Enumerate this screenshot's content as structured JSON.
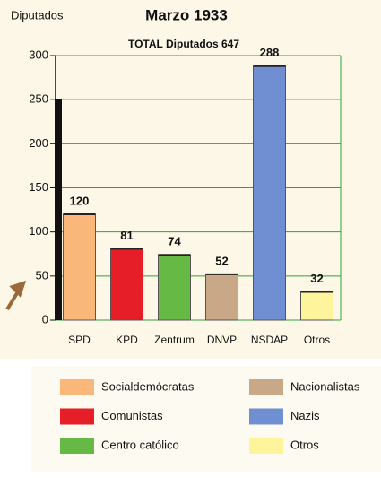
{
  "chart_data": {
    "type": "bar",
    "title": "Marzo 1933",
    "subtitle": "TOTAL Diputados 647",
    "y_label": "Diputados",
    "categories": [
      "SPD",
      "KPD",
      "Zentrum",
      "DNVP",
      "NSDAP",
      "Otros"
    ],
    "values": [
      120,
      81,
      74,
      52,
      288,
      32
    ],
    "colors": [
      "#f9b77a",
      "#e61e27",
      "#65b944",
      "#c8a887",
      "#6f8fd2",
      "#fdf49b"
    ],
    "ylim": [
      0,
      300
    ],
    "yticks": [
      0,
      50,
      100,
      150,
      200,
      250,
      300
    ],
    "grid": true,
    "legend": [
      {
        "label": "Socialdemócratas",
        "color": "#f9b77a"
      },
      {
        "label": "Comunistas",
        "color": "#e61e27"
      },
      {
        "label": "Centro católico",
        "color": "#65b944"
      },
      {
        "label": "Nacionalistas",
        "color": "#c8a887"
      },
      {
        "label": "Nazis",
        "color": "#6f8fd2"
      },
      {
        "label": "Otros",
        "color": "#fdf49b"
      }
    ]
  }
}
